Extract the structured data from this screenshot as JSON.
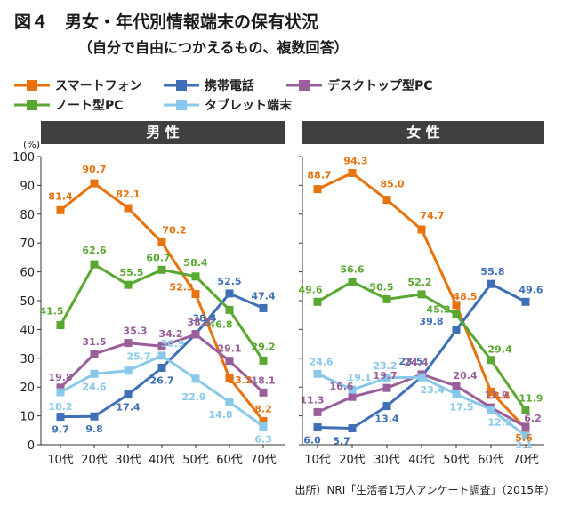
{
  "title": "図４　男女・年代別情報端末の保有状況",
  "subtitle": "（自分で自由につかえるもの、複数回答）",
  "source": "出所）NRI「生活者1万人アンケート調査」（2015年）",
  "unit": "(%)",
  "colors": {
    "smartphone": "#e8720c",
    "mobile": "#3f6fb6",
    "desktop": "#9a5f9a",
    "notebook": "#5aa832",
    "tablet": "#88c8ea",
    "header_bg": "#404040",
    "header_text": "#ffffff"
  },
  "legend": {
    "row1": [
      {
        "key": "smartphone",
        "label": "スマートフォン"
      },
      {
        "key": "mobile",
        "label": "携帯電話"
      },
      {
        "key": "desktop",
        "label": "デスクトップ型PC"
      }
    ],
    "row2": [
      {
        "key": "notebook",
        "label": "ノート型PC"
      },
      {
        "key": "tablet",
        "label": "タブレット端末"
      }
    ]
  },
  "chart_data": [
    {
      "type": "line",
      "panel": "男 性",
      "categories": [
        "10代",
        "20代",
        "30代",
        "40代",
        "50代",
        "60代",
        "70代"
      ],
      "ylim": [
        0,
        100
      ],
      "yticks": [
        0,
        10,
        20,
        30,
        40,
        50,
        60,
        70,
        80,
        90,
        100
      ],
      "grid": false,
      "series": [
        {
          "key": "smartphone",
          "name": "スマートフォン",
          "values": [
            81.4,
            90.7,
            82.1,
            70.2,
            52.3,
            23.2,
            8.2
          ]
        },
        {
          "key": "mobile",
          "name": "携帯電話",
          "values": [
            9.7,
            9.8,
            17.4,
            26.7,
            38.4,
            52.5,
            47.4
          ]
        },
        {
          "key": "desktop",
          "name": "デスクトップ型PC",
          "values": [
            19.8,
            31.5,
            35.3,
            34.2,
            38.3,
            29.1,
            18.1
          ]
        },
        {
          "key": "notebook",
          "name": "ノート型PC",
          "values": [
            41.5,
            62.6,
            55.5,
            60.7,
            58.4,
            46.8,
            29.2
          ]
        },
        {
          "key": "tablet",
          "name": "タブレット端末",
          "values": [
            18.2,
            24.6,
            25.7,
            30.9,
            22.9,
            14.8,
            6.3
          ]
        }
      ]
    },
    {
      "type": "line",
      "panel": "女 性",
      "categories": [
        "10代",
        "20代",
        "30代",
        "40代",
        "50代",
        "60代",
        "70代"
      ],
      "ylim": [
        0,
        100
      ],
      "yticks": [
        0,
        10,
        20,
        30,
        40,
        50,
        60,
        70,
        80,
        90,
        100
      ],
      "grid": false,
      "series": [
        {
          "key": "smartphone",
          "name": "スマートフォン",
          "values": [
            88.7,
            94.3,
            85.0,
            74.7,
            48.5,
            18.4,
            5.6
          ]
        },
        {
          "key": "mobile",
          "name": "携帯電話",
          "values": [
            6.0,
            5.7,
            13.4,
            23.5,
            39.8,
            55.8,
            49.6
          ]
        },
        {
          "key": "desktop",
          "name": "デスクトップ型PC",
          "values": [
            11.3,
            16.6,
            19.7,
            24.4,
            20.4,
            12.9,
            6.2
          ]
        },
        {
          "key": "notebook",
          "name": "ノート型PC",
          "values": [
            49.6,
            56.6,
            50.5,
            52.2,
            45.2,
            29.4,
            11.9
          ]
        },
        {
          "key": "tablet",
          "name": "タブレット端末",
          "values": [
            24.6,
            19.1,
            23.2,
            23.4,
            17.5,
            12.2,
            3.1
          ]
        }
      ]
    }
  ]
}
